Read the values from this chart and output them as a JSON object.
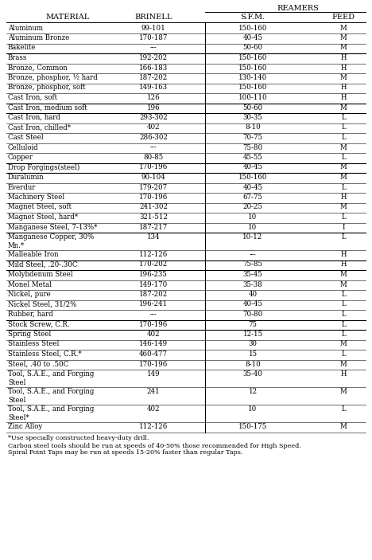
{
  "title": "REAMERS",
  "headers": [
    "MATERIAL",
    "BRINELL",
    "S.F.M.",
    "FEED"
  ],
  "rows": [
    [
      "Aluminum",
      "99-101",
      "150-160",
      "M",
      1,
      false
    ],
    [
      "Aluminum Bronze",
      "170-187",
      "40-45",
      "M",
      1,
      false
    ],
    [
      "Bakelite",
      "---",
      "50-60",
      "M",
      1,
      true
    ],
    [
      "Brass",
      "192-202",
      "150-160",
      "H",
      1,
      false
    ],
    [
      "Bronze, Common",
      "166-183",
      "150-160",
      "H",
      1,
      false
    ],
    [
      "Bronze, phosphor, ½ hard",
      "187-202",
      "130-140",
      "M",
      1,
      false
    ],
    [
      "Bronze, phosphor, soft",
      "149-163",
      "150-160",
      "H",
      1,
      false
    ],
    [
      "Cast Iron, soft",
      "126",
      "100-110",
      "H",
      1,
      true
    ],
    [
      "Cast Iron, medium soft",
      "196",
      "50-60",
      "M",
      1,
      true
    ],
    [
      "Cast Iron, hard",
      "293-302",
      "30-35",
      "L",
      1,
      false
    ],
    [
      "Cast Iron, chilled*",
      "402",
      "8-10",
      "L",
      1,
      false
    ],
    [
      "Cast Steel",
      "286-302",
      "70-75",
      "L",
      1,
      false
    ],
    [
      "Celluloid",
      "---",
      "75-80",
      "M",
      1,
      false
    ],
    [
      "Copper",
      "80-85",
      "45-55",
      "L",
      1,
      true
    ],
    [
      "Drop Forgings(steel)",
      "170-196",
      "40-45",
      "M",
      1,
      true
    ],
    [
      "Duralumin",
      "90-104",
      "150-160",
      "M",
      1,
      false
    ],
    [
      "Everdur",
      "179-207",
      "40-45",
      "L",
      1,
      false
    ],
    [
      "Machinery Steel",
      "170-196",
      "67-75",
      "H",
      1,
      false
    ],
    [
      "Magnet Steel, soft",
      "241-302",
      "20-25",
      "M",
      1,
      false
    ],
    [
      "Magnet Steel, hard*",
      "321-512",
      "10",
      "L",
      1,
      false
    ],
    [
      "Manganese Steel, 7-13%*",
      "187-217",
      "10",
      "I",
      1,
      true
    ],
    [
      "Manganese Copper, 30%\nMn.*",
      "134",
      "10-12",
      "L",
      2,
      false
    ],
    [
      "Malleable Iron",
      "112-126",
      "---",
      "H",
      1,
      true
    ],
    [
      "Mild Steel, .20-.30C",
      "170-202",
      "75-85",
      "H",
      1,
      true
    ],
    [
      "Molybdenum Steel",
      "196-235",
      "35-45",
      "M",
      1,
      false
    ],
    [
      "Monel Metal",
      "149-170",
      "35-38",
      "M",
      1,
      false
    ],
    [
      "Nickel, pure",
      "187-202",
      "40",
      "L",
      1,
      false
    ],
    [
      "Nickel Steel, 31/2%",
      "196-241",
      "40-45",
      "L",
      1,
      false
    ],
    [
      "Rubber, hard",
      "---",
      "70-80",
      "L",
      1,
      true
    ],
    [
      "Stock Screw, C.R.",
      "170-196",
      "75",
      "L",
      1,
      true
    ],
    [
      "Spring Steel",
      "402",
      "12-15",
      "L",
      1,
      false
    ],
    [
      "Stainless Steel",
      "146-149",
      "30",
      "M",
      1,
      false
    ],
    [
      "Stainless Steel, C.R.*",
      "460-477",
      "15",
      "L",
      1,
      false
    ],
    [
      "Steel, .40 to .50C",
      "170-196",
      "8-10",
      "M",
      1,
      false
    ],
    [
      "Tool, S.A.E., and Forging\nSteel",
      "149",
      "35-40",
      "H",
      2,
      false
    ],
    [
      "Tool, S.A.E., and Forging\nSteel",
      "241",
      "12",
      "M",
      2,
      false
    ],
    [
      "Tool, S.A.E., and Forging\nSteel*",
      "402",
      "10",
      "L",
      2,
      false
    ],
    [
      "Zinc Alloy",
      "112-126",
      "150-175",
      "M",
      1,
      false
    ]
  ],
  "footnotes": [
    "*Use specially constructed heavy-duty drill.",
    "Carbon steel tools should be run at speeds of 40-50% those recommended for High Speed.",
    "Spiral Point Taps may be run at speeds 15-20% faster than regular Taps."
  ],
  "bg_color": "#ffffff",
  "text_color": "#000000",
  "font_size": 6.2,
  "header_font_size": 7.0,
  "reamers_font_size": 7.0
}
